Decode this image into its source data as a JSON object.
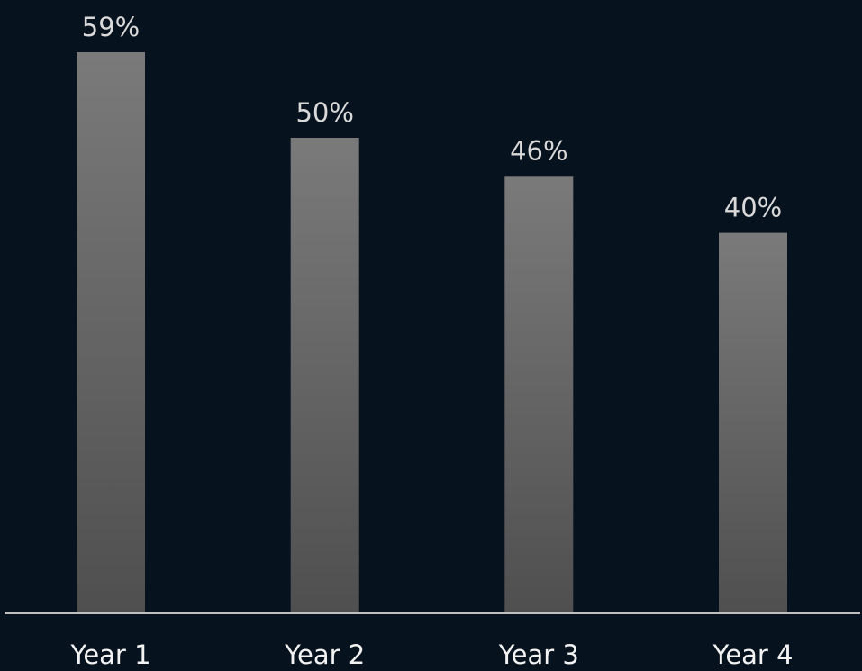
{
  "chart_data": {
    "type": "bar",
    "categories": [
      "Year 1",
      "Year 2",
      "Year 3",
      "Year 4"
    ],
    "values": [
      59,
      50,
      46,
      40
    ],
    "value_labels": [
      "59%",
      "50%",
      "46%",
      "40%"
    ],
    "title": "",
    "xlabel": "",
    "ylabel": "",
    "ylim": [
      0,
      60
    ],
    "grid": false,
    "legend": "none",
    "colors": {
      "background": "#07121f",
      "bar_top": "#7a7a7a",
      "bar_bottom": "#4f4f4f",
      "baseline": "#bfbfbf"
    }
  }
}
